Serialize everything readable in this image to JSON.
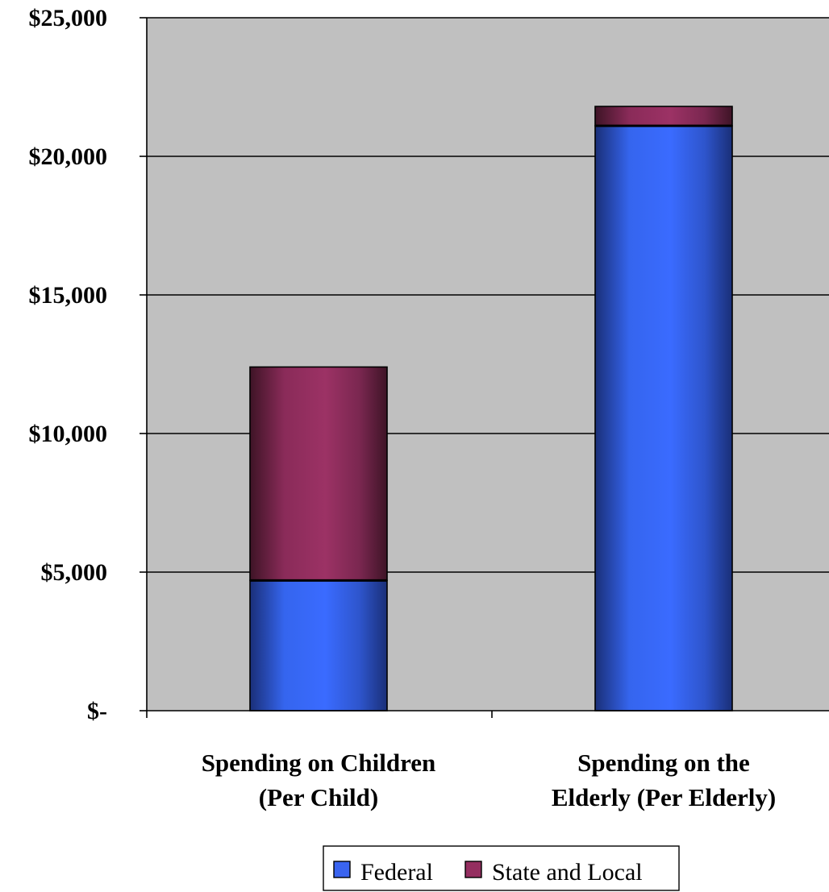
{
  "chart_data": {
    "type": "bar",
    "stacked": true,
    "categories": [
      [
        "Spending on Children",
        "(Per Child)"
      ],
      [
        "Spending on the",
        "Elderly (Per Elderly)"
      ]
    ],
    "series": [
      {
        "name": "Federal",
        "values": [
          4700,
          21100
        ],
        "color": "#3a64f0"
      },
      {
        "name": "State and Local",
        "values": [
          7700,
          700
        ],
        "color": "#952e60"
      }
    ],
    "ylim": [
      0,
      25000
    ],
    "yticks": [
      0,
      5000,
      10000,
      15000,
      20000,
      25000
    ],
    "ytick_labels": [
      "$-",
      "$5,000",
      "$10,000",
      "$15,000",
      "$20,000",
      "$25,000"
    ],
    "grid": true,
    "plot_background": "#c0c0c0",
    "legend_position": "bottom-center",
    "title": "",
    "xlabel": "",
    "ylabel": ""
  }
}
